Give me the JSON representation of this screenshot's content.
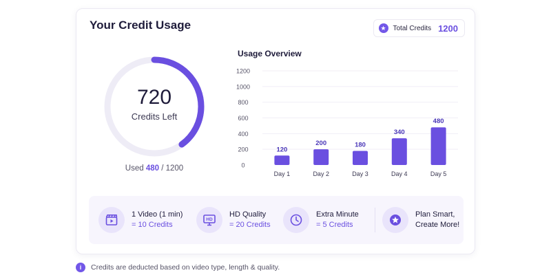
{
  "header": {
    "title": "Your Credit Usage",
    "total_label": "Total Credits",
    "total_value": "1200"
  },
  "credits": {
    "left_value": "720",
    "left_label": "Credits Left",
    "used_prefix": "Used",
    "used_value": "480",
    "used_suffix": "/ 1200",
    "used_fraction": 0.4
  },
  "chart_data": {
    "type": "bar",
    "title": "Usage Overview",
    "categories": [
      "Day 1",
      "Day 2",
      "Day 3",
      "Day 4",
      "Day 5"
    ],
    "values": [
      120,
      200,
      180,
      340,
      480
    ],
    "ylim": [
      0,
      1200
    ],
    "yticks": [
      0,
      200,
      400,
      600,
      800,
      1000,
      1200
    ],
    "grid": true,
    "color": "#6a4fe0"
  },
  "features": [
    {
      "icon": "video-clapper-icon",
      "title": "1 Video (1 min)",
      "sub": "= 10 Credits"
    },
    {
      "icon": "hd-monitor-icon",
      "title": "HD Quality",
      "sub": "= 20 Credits"
    },
    {
      "icon": "clock-icon",
      "title": "Extra Minute",
      "sub": "= 5 Credits"
    },
    {
      "icon": "star-icon",
      "title": "Plan Smart,",
      "sub": "Create More!"
    }
  ],
  "footer": {
    "note": "Credits are deducted based on video type, length & quality."
  },
  "colors": {
    "accent": "#6a4fe0",
    "accent_light": "#e9e4fb",
    "track": "#eeecf6"
  }
}
